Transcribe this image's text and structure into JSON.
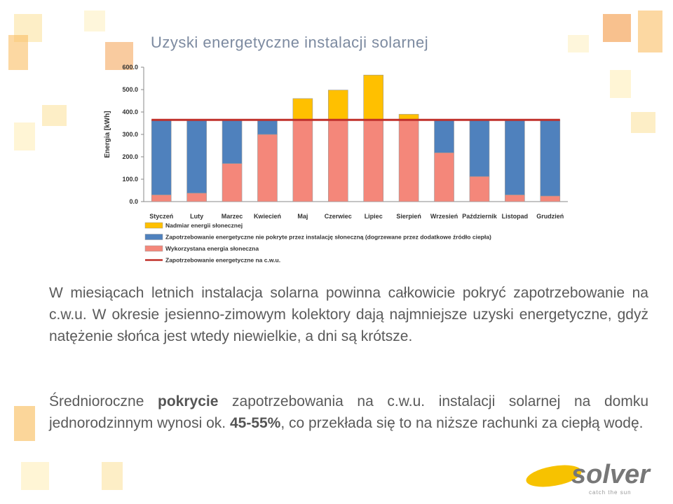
{
  "title": "Uzyski energetyczne instalacji solarnej",
  "chart_data": {
    "type": "bar",
    "stacked": true,
    "y_label": "Energia [kWh]",
    "categories": [
      "Styczeń",
      "Luty",
      "Marzec",
      "Kwiecień",
      "Maj",
      "Czerwiec",
      "Lipiec",
      "Sierpień",
      "Wrzesień",
      "Październik",
      "Listopad",
      "Grudzień"
    ],
    "series": [
      {
        "name": "Nadmiar energii słonecznej",
        "color": "#ffc000",
        "values": [
          0,
          0,
          0,
          0,
          95,
          133,
          200,
          25,
          0,
          0,
          0,
          0
        ]
      },
      {
        "name": "Zapotrzebowanie energetyczne nie pokryte przez instalację słoneczną (dogrzewane przez dodatkowe źródło ciepła)",
        "color": "#4f81bd",
        "values": [
          335,
          327,
          195,
          65,
          0,
          0,
          0,
          0,
          147,
          253,
          335,
          340
        ]
      },
      {
        "name": "Wykorzystana energia słoneczna",
        "color": "#f4877a",
        "values": [
          30,
          38,
          170,
          300,
          365,
          365,
          365,
          365,
          218,
          112,
          30,
          25
        ]
      },
      {
        "name": "Zapotrzebowanie energetyczne na c.w.u.",
        "color": "#c0302a",
        "type": "line",
        "values": [
          365,
          365,
          365,
          365,
          365,
          365,
          365,
          365,
          365,
          365,
          365,
          365
        ]
      }
    ],
    "ylim": [
      0,
      600
    ],
    "yticks": [
      {
        "value": 0,
        "label": "0.0"
      },
      {
        "value": 100,
        "label": "100.0"
      },
      {
        "value": 200,
        "label": "200.0"
      },
      {
        "value": 300,
        "label": "300.0"
      },
      {
        "value": 400,
        "label": "400.0"
      },
      {
        "value": 500,
        "label": "500.0"
      },
      {
        "value": 600,
        "label": "600.0"
      }
    ]
  },
  "paragraph1": "W miesiącach letnich instalacja solarna powinna całkowicie pokryć zapotrzebowanie na c.w.u. W okresie jesienno-zimowym kolektory dają najmniejsze uzyski energetyczne, gdyż natężenie słońca jest wtedy niewielkie, a dni są krótsze.",
  "paragraph2": [
    "Średnioroczne ",
    "pokrycie",
    " zapotrzebowania na c.w.u.  instalacji solarnej na domku jednorodzinnym wynosi ok. ",
    "45-55%",
    ", co przekłada się to na niższe rachunki za ciepłą wodę."
  ],
  "logo": {
    "name": "solver",
    "tagline": "catch the sun"
  }
}
